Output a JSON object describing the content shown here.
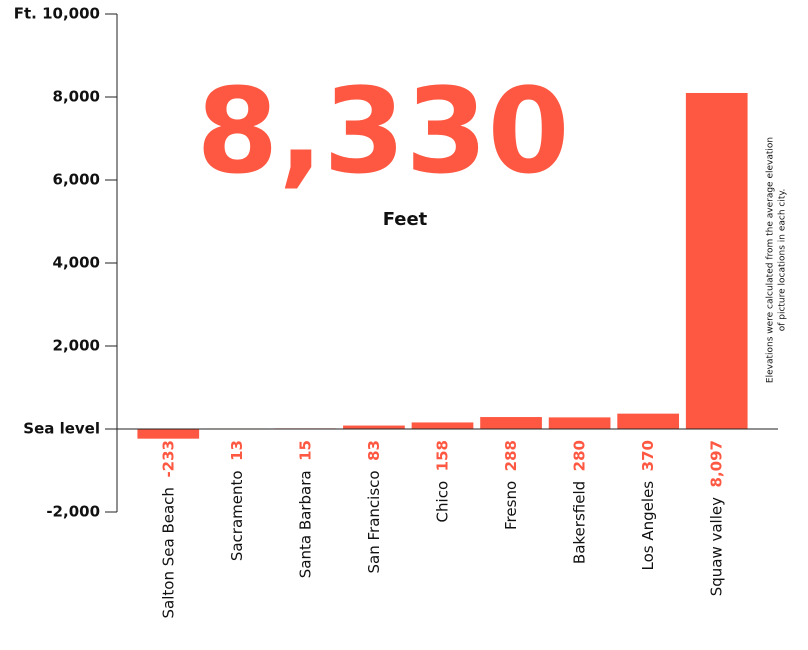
{
  "chart_data": {
    "type": "bar",
    "headline": "8,330",
    "headline_unit": "Feet",
    "note": [
      "Elevations were calculated from the average elevation",
      "of picture locations in each city."
    ],
    "categories": [
      "Salton Sea Beach",
      "Sacramento",
      "Santa Barbara",
      "San Francisco",
      "Chico",
      "Fresno",
      "Bakersfield",
      "Los Angeles",
      "Squaw valley"
    ],
    "values": [
      -233,
      13,
      15,
      83,
      158,
      288,
      280,
      370,
      8097
    ],
    "value_labels": [
      "-233",
      "13",
      "15",
      "83",
      "158",
      "288",
      "280",
      "370",
      "8,097"
    ],
    "color": "#ff5842",
    "ylim": [
      -2000,
      10000
    ],
    "yticks": [
      {
        "value": -2000,
        "label": "-2,000"
      },
      {
        "value": 0,
        "label": "Sea level"
      },
      {
        "value": 2000,
        "label": "2,000"
      },
      {
        "value": 4000,
        "label": "4,000"
      },
      {
        "value": 6000,
        "label": "6,000"
      },
      {
        "value": 8000,
        "label": "8,000"
      },
      {
        "value": 10000,
        "label": "Ft. 10,000"
      }
    ]
  }
}
